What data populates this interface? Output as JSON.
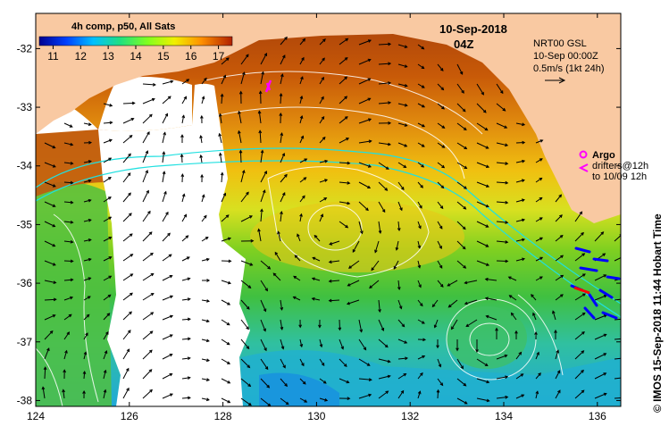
{
  "map": {
    "title": "4h comp, p50, All Sats",
    "date": "10-Sep-2018",
    "time": "04Z",
    "colorbar": {
      "ticks": [
        "11",
        "12",
        "13",
        "14",
        "15",
        "16",
        "17"
      ],
      "min": 10.5,
      "max": 17.5
    },
    "current_info": {
      "line1": "NRT00 GSL",
      "line2": "10-Sep 00:00Z",
      "line3": "0.5m/s (1kt 24h)"
    },
    "legend": {
      "argo": "Argo",
      "drifters1": "drifters@12h",
      "drifters2": "to 10/09 12h"
    },
    "credit": "© IMOS 15-Sep-2018 11:44 Hobart Time",
    "x_ticks": [
      "124",
      "126",
      "128",
      "130",
      "132",
      "134",
      "136"
    ],
    "y_ticks": [
      "-32",
      "-33",
      "-34",
      "-35",
      "-36",
      "-37",
      "-38"
    ],
    "lon_range": [
      124,
      136.5
    ],
    "lat_range": [
      -31.4,
      -38.1
    ],
    "colors": {
      "land": "#f9c9a2",
      "cloud": "#ffffff",
      "argo": "#ff00ff",
      "drifter": "#0000ff",
      "drifter_recent": "#ff0000"
    }
  }
}
